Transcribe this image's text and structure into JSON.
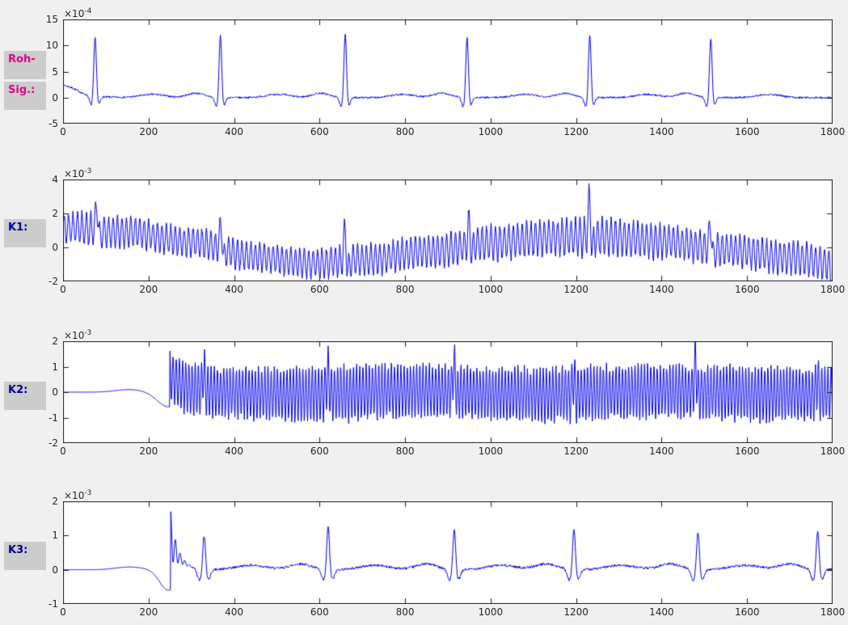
{
  "figure": {
    "bg": "#f0f0f0",
    "plot_bg": "#ffffff",
    "frame_color": "#1c1c1c",
    "tick_text_color": "#262626",
    "label_box_bg": "#cccccc",
    "row_labels": [
      {
        "texts": [
          "Roh-",
          "Sig.:"
        ],
        "color": "#e6008c"
      },
      {
        "texts": [
          "K1:"
        ],
        "color": "#0000a0"
      },
      {
        "texts": [
          "K2:"
        ],
        "color": "#0000a0"
      },
      {
        "texts": [
          "K3:"
        ],
        "color": "#0000a0"
      }
    ]
  },
  "chart_data": [
    {
      "type": "line",
      "label": "Roh-Sig.:",
      "series_color": "#0000ee",
      "grid": false,
      "legend": null,
      "x_range": [
        0,
        1800
      ],
      "x_ticks": [
        0,
        200,
        400,
        600,
        800,
        1000,
        1200,
        1400,
        1600,
        1800
      ],
      "y_range": [
        -5,
        15
      ],
      "y_ticks": [
        -5,
        0,
        5,
        10,
        15
      ],
      "y_multiplier": {
        "base": "×10",
        "exp": "-4"
      },
      "signal": {
        "kind": "ecg_raw",
        "units_scale": "1e-4",
        "start": {
          "amp": 1.8,
          "tau": 38
        },
        "beats": [
          75,
          368,
          660,
          945,
          1232,
          1515
        ],
        "r_amps": [
          11.6,
          12.1,
          12.4,
          11.8,
          12.3,
          11.7
        ],
        "q": {
          "dx": -9,
          "w": 4,
          "amp": -1.8
        },
        "s": {
          "dx": 8,
          "w": 4,
          "amp": -1.5
        },
        "t": {
          "dx": 135,
          "w": 28,
          "amp": 0.62
        },
        "p": {
          "dx": -58,
          "w": 20,
          "amp": 0.85
        },
        "noise": 0.18
      }
    },
    {
      "type": "line",
      "label": "K1:",
      "series_color": "#0000ee",
      "grid": false,
      "legend": null,
      "x_range": [
        0,
        1800
      ],
      "x_ticks": [
        0,
        200,
        400,
        600,
        800,
        1000,
        1200,
        1400,
        1600,
        1800
      ],
      "y_range": [
        -2,
        4
      ],
      "y_ticks": [
        -2,
        0,
        2,
        4
      ],
      "y_multiplier": {
        "base": "×10",
        "exp": "-3"
      },
      "signal": {
        "kind": "mod_osc",
        "units_scale": "1e-3",
        "osc_period": 10.4,
        "center_points": [
          [
            0,
            1.15
          ],
          [
            150,
            0.9
          ],
          [
            300,
            0.3
          ],
          [
            450,
            -0.55
          ],
          [
            570,
            -0.95
          ],
          [
            700,
            -0.75
          ],
          [
            850,
            -0.25
          ],
          [
            1000,
            0.25
          ],
          [
            1150,
            0.6
          ],
          [
            1270,
            0.62
          ],
          [
            1400,
            0.35
          ],
          [
            1550,
            -0.15
          ],
          [
            1700,
            -0.6
          ],
          [
            1800,
            -0.95
          ]
        ],
        "amp_points": [
          [
            0,
            0.9
          ],
          [
            400,
            0.8
          ],
          [
            700,
            0.85
          ],
          [
            1000,
            0.95
          ],
          [
            1250,
            1.05
          ],
          [
            1500,
            0.9
          ],
          [
            1800,
            0.95
          ]
        ],
        "amp_jitter": 0.22,
        "spikes": [
          [
            80,
            1.6
          ],
          [
            370,
            1.55
          ],
          [
            660,
            2.0
          ],
          [
            950,
            1.4
          ],
          [
            1232,
            2.45
          ],
          [
            1515,
            1.6
          ]
        ],
        "spike_w": 3.2,
        "spike_neg_frac": 0.55,
        "spike_neg_dx": 5,
        "end_dip": {
          "c": 1802,
          "w": 5,
          "amp": -1.3
        },
        "noise": 0.05
      }
    },
    {
      "type": "line",
      "label": "K2:",
      "series_color": "#0000ee",
      "grid": false,
      "legend": null,
      "x_range": [
        0,
        1800
      ],
      "x_ticks": [
        0,
        200,
        400,
        600,
        800,
        1000,
        1200,
        1400,
        1600,
        1800
      ],
      "y_range": [
        -2,
        2
      ],
      "y_ticks": [
        -2,
        -1,
        0,
        1,
        2
      ],
      "y_multiplier": {
        "base": "×10",
        "exp": "-3"
      },
      "signal": {
        "kind": "onset_osc",
        "units_scale": "1e-3",
        "pre_bump": {
          "c": 155,
          "w": 32,
          "amp": 0.1
        },
        "pre_dip": {
          "c": 247,
          "w": 26,
          "amp": -0.58
        },
        "onset": 250,
        "osc_period": 7.4,
        "upper": {
          "base": 0.98,
          "extra": 0.62,
          "tau": 32,
          "wobble": 0.07,
          "wobble_period": 620
        },
        "lower": {
          "base": -1.02,
          "extra": 0.72,
          "tau": 28,
          "wobble": 0.07,
          "wobble_period": 540
        },
        "amp_jitter": 0.16,
        "spikes": [
          [
            330,
            0.8
          ],
          [
            620,
            0.85
          ],
          [
            915,
            1.1
          ],
          [
            1195,
            0.7
          ],
          [
            1480,
            1.15
          ],
          [
            1765,
            0.6
          ]
        ],
        "spike_w": 3.2,
        "spike_neg_frac": 0.3,
        "spike_neg_dx": 4,
        "noise": 0.04
      }
    },
    {
      "type": "line",
      "label": "K3:",
      "series_color": "#0000ee",
      "grid": false,
      "legend": null,
      "x_range": [
        0,
        1800
      ],
      "x_ticks": [
        0,
        200,
        400,
        600,
        800,
        1000,
        1200,
        1400,
        1600,
        1800
      ],
      "y_range": [
        -1,
        2
      ],
      "y_ticks": [
        -1,
        0,
        1,
        2
      ],
      "y_multiplier": {
        "base": "×10",
        "exp": "-3"
      },
      "signal": {
        "kind": "residual_ecg",
        "units_scale": "1e-3",
        "pre_bump": {
          "c": 155,
          "w": 32,
          "amp": 0.08
        },
        "pre_dip": {
          "c": 246,
          "w": 20,
          "amp": -0.6
        },
        "transient": {
          "x": 252,
          "amp": 1.55,
          "decay": 14,
          "period": 11,
          "len": 90
        },
        "beats": [
          [
            330,
            1.05
          ],
          [
            620,
            1.3
          ],
          [
            915,
            1.2
          ],
          [
            1195,
            1.25
          ],
          [
            1485,
            1.15
          ],
          [
            1765,
            1.2
          ]
        ],
        "beat_shape": {
          "pre_dip": {
            "dx": -11,
            "w": 5,
            "amp": -0.32
          },
          "r_w": 3.2,
          "post_dip": {
            "dx": 10,
            "w": 5,
            "amp": -0.28
          },
          "t": {
            "dx": 110,
            "w": 35,
            "amp": 0.13
          },
          "p": {
            "dx": -65,
            "w": 25,
            "amp": 0.17
          }
        },
        "noise": 0.035,
        "noise_from": 300
      }
    }
  ]
}
